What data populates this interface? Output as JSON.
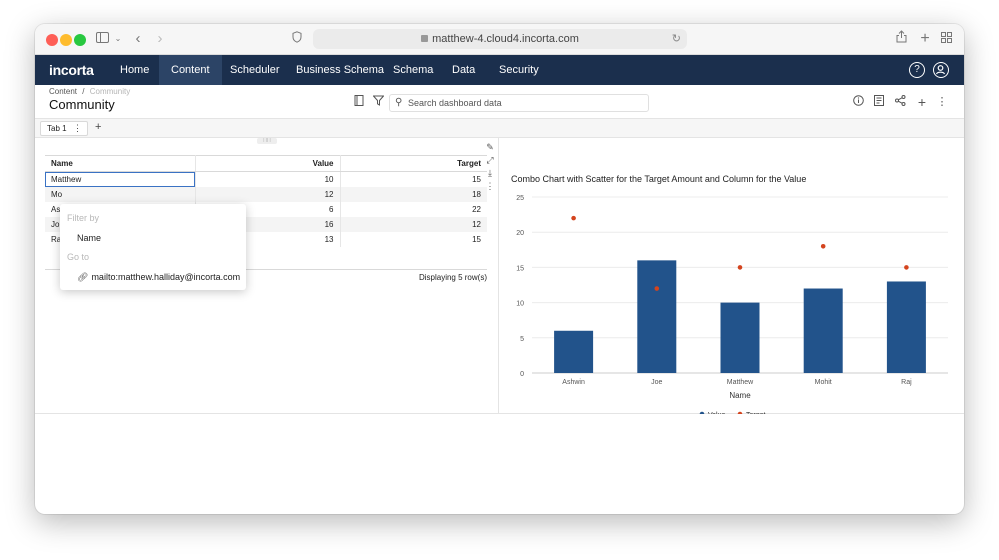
{
  "browser": {
    "url": "matthew-4.cloud4.incorta.com"
  },
  "app": {
    "logo": "incorta",
    "nav": [
      {
        "label": "Home"
      },
      {
        "label": "Content"
      },
      {
        "label": "Scheduler"
      },
      {
        "label": "Business Schema"
      },
      {
        "label": "Schema"
      },
      {
        "label": "Data"
      },
      {
        "label": "Security"
      }
    ],
    "active_nav": "Content",
    "help_glyph": "?"
  },
  "header": {
    "breadcrumb_root": "Content",
    "breadcrumb_sep": "/",
    "breadcrumb_current": "Community",
    "title": "Community",
    "search_placeholder": "Search dashboard data"
  },
  "tabs": [
    {
      "label": "Tab 1"
    }
  ],
  "table": {
    "columns": [
      "Name",
      "Value",
      "Target"
    ],
    "rows": [
      {
        "name": "Matthew",
        "value": "10",
        "target": "15"
      },
      {
        "name": "Mo",
        "value": "12",
        "target": "18"
      },
      {
        "name": "As",
        "value": "6",
        "target": "22"
      },
      {
        "name": "Jo",
        "value": "16",
        "target": "12"
      },
      {
        "name": "Ra",
        "value": "13",
        "target": "15"
      }
    ],
    "footer": "Displaying 5 row(s)"
  },
  "popup": {
    "filter_by": "Filter by",
    "filter_item": "Name",
    "go_to": "Go to",
    "link_item": "mailto:matthew.halliday@incorta.com"
  },
  "colors": {
    "nav_bg": "#1b2f4d",
    "bar": "#22538b",
    "scatter": "#d4441e"
  },
  "chart_data": {
    "type": "bar",
    "title": "Combo Chart with Scatter for the Target Amount and Column for the Value",
    "xlabel": "Name",
    "ylabel": "",
    "categories": [
      "Ashwin",
      "Joe",
      "Matthew",
      "Mohit",
      "Raj"
    ],
    "series": [
      {
        "name": "Value",
        "type": "bar",
        "values": [
          6,
          16,
          10,
          12,
          13
        ]
      },
      {
        "name": "Target",
        "type": "scatter",
        "values": [
          22,
          12,
          15,
          18,
          15
        ]
      }
    ],
    "yticks": [
      "0",
      "5",
      "10",
      "15",
      "20",
      "25"
    ],
    "ylim": [
      0,
      25
    ],
    "legend": "bottom-center"
  }
}
